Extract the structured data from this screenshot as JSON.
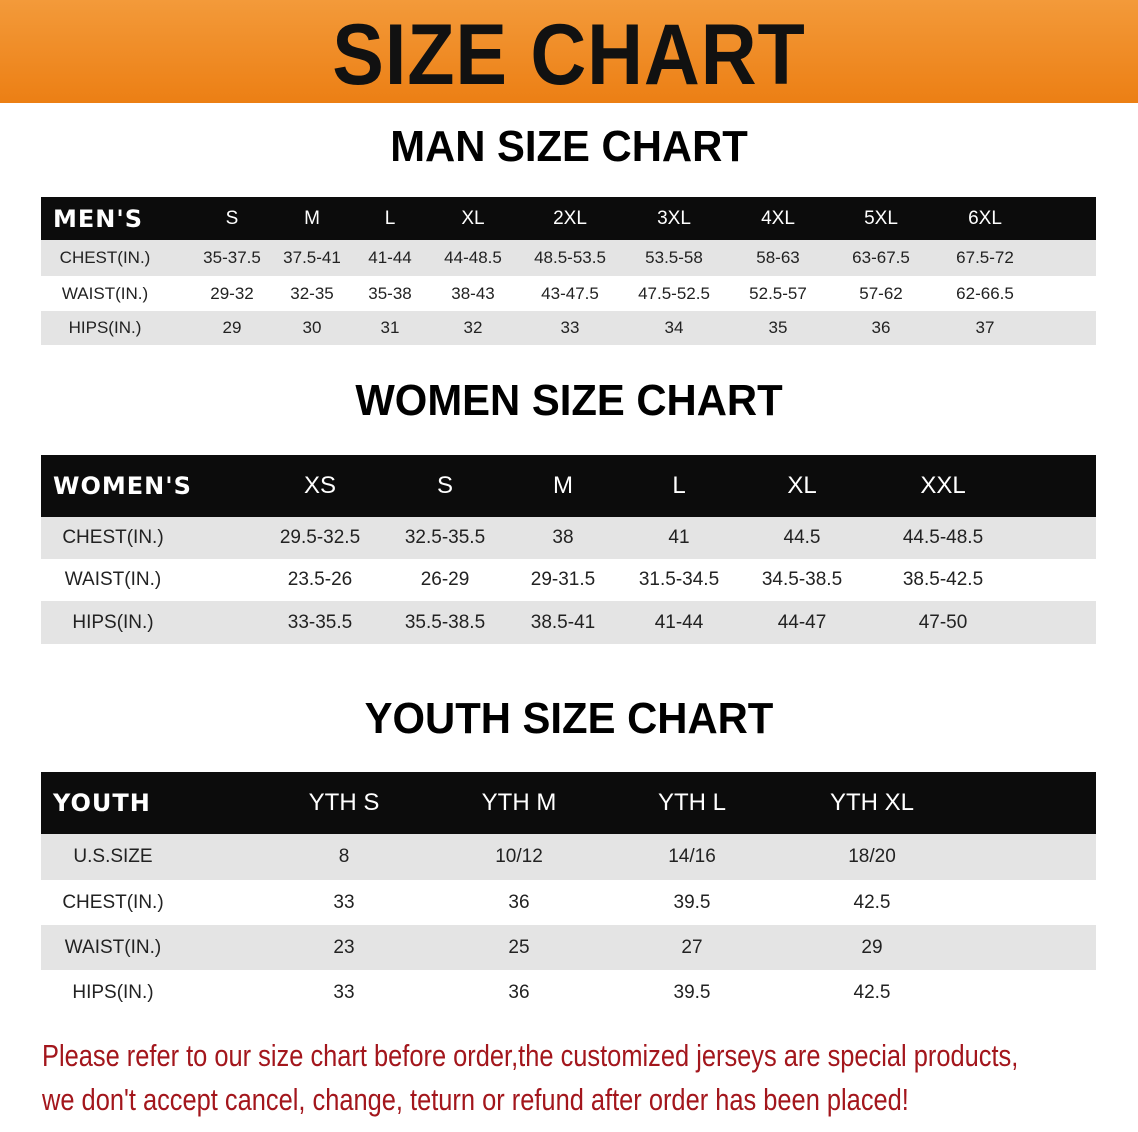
{
  "banner": {
    "title": "SIZE CHART"
  },
  "men": {
    "title": "MAN SIZE CHART",
    "header_label": "MEN'S",
    "sizes": [
      "S",
      "M",
      "L",
      "XL",
      "2XL",
      "3XL",
      "4XL",
      "5XL",
      "6XL"
    ],
    "rows": [
      {
        "label": "CHEST(IN.)",
        "values": [
          "35-37.5",
          "37.5-41",
          "41-44",
          "44-48.5",
          "48.5-53.5",
          "53.5-58",
          "58-63",
          "63-67.5",
          "67.5-72"
        ]
      },
      {
        "label": "WAIST(IN.)",
        "values": [
          "29-32",
          "32-35",
          "35-38",
          "38-43",
          "43-47.5",
          "47.5-52.5",
          "52.5-57",
          "57-62",
          "62-66.5"
        ]
      },
      {
        "label": "HIPS(IN.)",
        "values": [
          "29",
          "30",
          "31",
          "32",
          "33",
          "34",
          "35",
          "36",
          "37"
        ]
      }
    ]
  },
  "women": {
    "title": "WOMEN SIZE CHART",
    "header_label": "WOMEN'S",
    "sizes": [
      "XS",
      "S",
      "M",
      "L",
      "XL",
      "XXL"
    ],
    "rows": [
      {
        "label": "CHEST(IN.)",
        "values": [
          "29.5-32.5",
          "32.5-35.5",
          "38",
          "41",
          "44.5",
          "44.5-48.5"
        ]
      },
      {
        "label": "WAIST(IN.)",
        "values": [
          "23.5-26",
          "26-29",
          "29-31.5",
          "31.5-34.5",
          "34.5-38.5",
          "38.5-42.5"
        ]
      },
      {
        "label": "HIPS(IN.)",
        "values": [
          "33-35.5",
          "35.5-38.5",
          "38.5-41",
          "41-44",
          "44-47",
          "47-50"
        ]
      }
    ]
  },
  "youth": {
    "title": "YOUTH SIZE CHART",
    "header_label": "YOUTH",
    "sizes": [
      "YTH S",
      "YTH M",
      "YTH L",
      "YTH XL"
    ],
    "rows": [
      {
        "label": "U.S.SIZE",
        "values": [
          "8",
          "10/12",
          "14/16",
          "18/20"
        ]
      },
      {
        "label": "CHEST(IN.)",
        "values": [
          "33",
          "36",
          "39.5",
          "42.5"
        ]
      },
      {
        "label": "WAIST(IN.)",
        "values": [
          "23",
          "25",
          "27",
          "29"
        ]
      },
      {
        "label": "HIPS(IN.)",
        "values": [
          "33",
          "36",
          "39.5",
          "42.5"
        ]
      }
    ]
  },
  "notice": {
    "line1": "Please refer to our size chart before order,the customized jerseys are special products,",
    "line2": "we don't accept cancel, change, teturn or refund after order has been placed!"
  },
  "colors": {
    "banner": "#ec7f14",
    "header": "#0c0c0c",
    "stripe": "#e4e4e4",
    "notice": "#a3161c"
  }
}
